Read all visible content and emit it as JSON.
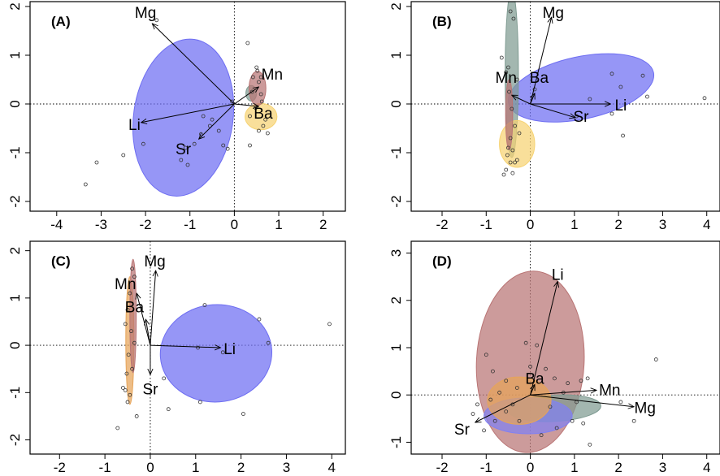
{
  "colors": {
    "blue": "#6e6ef2",
    "red": "#b97474",
    "yellow": "#f6d373",
    "gray": "#7f9b92",
    "orange": "#e6a459",
    "blue_d": "#8181f2"
  },
  "chart_data": [
    {
      "type": "scatter",
      "panel_label": "(A)",
      "xlim": [
        -4.6,
        2.5
      ],
      "ylim": [
        -2.2,
        2.1
      ],
      "xticks": [
        "-4",
        "-3",
        "-2",
        "-1",
        "0",
        "1",
        "2"
      ],
      "yticks": [
        "-2",
        "-1",
        "0",
        "1",
        "2"
      ],
      "xtick_values": [
        -4,
        -3,
        -2,
        -1,
        0,
        1,
        2
      ],
      "ytick_values": [
        -2,
        -1,
        0,
        1,
        2
      ],
      "vectors": [
        {
          "name": "Mg",
          "x": -1.85,
          "y": 1.65,
          "lx": -2.0,
          "ly": 1.85
        },
        {
          "name": "Mn",
          "x": 0.55,
          "y": 0.35,
          "lx": 0.85,
          "ly": 0.58
        },
        {
          "name": "Ba",
          "x": 0.55,
          "y": -0.05,
          "lx": 0.65,
          "ly": -0.22
        },
        {
          "name": "Li",
          "x": -2.1,
          "y": -0.38,
          "lx": -2.25,
          "ly": -0.45
        },
        {
          "name": "Sr",
          "x": -0.8,
          "y": -0.72,
          "lx": -1.15,
          "ly": -0.95
        }
      ],
      "ellipses": [
        {
          "color": "blue",
          "cx": -1.15,
          "cy": -0.28,
          "rx": 1.12,
          "ry": 1.62,
          "rot": 8
        },
        {
          "color": "gray",
          "cx": 0.38,
          "cy": 0.22,
          "rx": 0.12,
          "ry": 0.16,
          "rot": 0
        },
        {
          "color": "yellow",
          "cx": 0.6,
          "cy": -0.26,
          "rx": 0.36,
          "ry": 0.27,
          "rot": 0
        },
        {
          "color": "red",
          "cx": 0.52,
          "cy": 0.32,
          "rx": 0.19,
          "ry": 0.35,
          "rot": 0
        }
      ],
      "points": [
        [
          -3.35,
          -1.65
        ],
        [
          -3.1,
          -1.2
        ],
        [
          -2.5,
          -1.05
        ],
        [
          -2.05,
          -0.82
        ],
        [
          -1.75,
          1.72
        ],
        [
          -1.2,
          -1.15
        ],
        [
          -1.05,
          -1.25
        ],
        [
          -0.9,
          -0.82
        ],
        [
          -0.75,
          -0.62
        ],
        [
          -0.55,
          -0.45
        ],
        [
          -0.5,
          -0.32
        ],
        [
          -0.35,
          -0.55
        ],
        [
          -0.25,
          -0.85
        ],
        [
          -0.15,
          -0.92
        ],
        [
          -0.05,
          0.05
        ],
        [
          -0.7,
          -0.25
        ],
        [
          -1.1,
          -0.9
        ],
        [
          0.3,
          1.25
        ],
        [
          0.5,
          0.75
        ],
        [
          0.42,
          0.55
        ],
        [
          0.55,
          0.45
        ],
        [
          0.6,
          0.2
        ],
        [
          0.62,
          0.05
        ],
        [
          0.48,
          -0.08
        ],
        [
          0.7,
          -0.32
        ],
        [
          0.55,
          -0.55
        ],
        [
          0.75,
          -0.6
        ],
        [
          0.65,
          -0.45
        ],
        [
          0.35,
          -0.85
        ],
        [
          0.4,
          0.25
        ],
        [
          0.52,
          0.68
        ],
        [
          0.35,
          -0.25
        ],
        [
          0.6,
          0.55
        ]
      ]
    },
    {
      "type": "scatter",
      "panel_label": "(B)",
      "xlim": [
        -2.7,
        4.3
      ],
      "ylim": [
        -2.2,
        2.1
      ],
      "xticks": [
        "-2",
        "-1",
        "0",
        "1",
        "2",
        "3",
        "4"
      ],
      "yticks": [
        "-2",
        "-1",
        "0",
        "1",
        "2"
      ],
      "xtick_values": [
        -2,
        -1,
        0,
        1,
        2,
        3,
        4
      ],
      "ytick_values": [
        -2,
        -1,
        0,
        1,
        2
      ],
      "vectors": [
        {
          "name": "Mg",
          "x": 0.48,
          "y": 1.78,
          "lx": 0.52,
          "ly": 1.85
        },
        {
          "name": "Ba",
          "x": 0.1,
          "y": 0.22,
          "lx": 0.2,
          "ly": 0.52
        },
        {
          "name": "Mn",
          "x": -0.42,
          "y": 0.18,
          "lx": -0.55,
          "ly": 0.52
        },
        {
          "name": "Li",
          "x": 1.82,
          "y": 0.0,
          "lx": 2.05,
          "ly": -0.05
        },
        {
          "name": "Sr",
          "x": 1.02,
          "y": -0.28,
          "lx": 1.15,
          "ly": -0.28
        }
      ],
      "ellipses": [
        {
          "color": "blue",
          "cx": 1.15,
          "cy": 0.33,
          "rx": 1.68,
          "ry": 0.64,
          "rot": -12
        },
        {
          "color": "gray",
          "cx": -0.42,
          "cy": 0.62,
          "rx": 0.15,
          "ry": 1.72,
          "rot": 0
        },
        {
          "color": "yellow",
          "cx": -0.3,
          "cy": -0.82,
          "rx": 0.4,
          "ry": 0.48,
          "rot": 0
        },
        {
          "color": "red",
          "cx": -0.48,
          "cy": -0.22,
          "rx": 0.08,
          "ry": 0.72,
          "rot": 0
        }
      ],
      "points": [
        [
          -0.45,
          1.9
        ],
        [
          -0.38,
          1.75
        ],
        [
          -0.5,
          0.75
        ],
        [
          -0.55,
          0.65
        ],
        [
          -0.48,
          0.25
        ],
        [
          -0.42,
          -0.1
        ],
        [
          -0.35,
          -0.45
        ],
        [
          -0.45,
          -0.7
        ],
        [
          -0.5,
          -0.9
        ],
        [
          -0.52,
          -1.05
        ],
        [
          -0.45,
          -1.2
        ],
        [
          -0.35,
          -1.2
        ],
        [
          -0.55,
          -1.35
        ],
        [
          -0.6,
          -1.45
        ],
        [
          -0.4,
          -1.42
        ],
        [
          -0.3,
          -1.15
        ],
        [
          -0.4,
          -0.95
        ],
        [
          -0.25,
          -0.6
        ],
        [
          0.1,
          0.3
        ],
        [
          1.05,
          -0.25
        ],
        [
          1.35,
          0.1
        ],
        [
          1.85,
          0.62
        ],
        [
          2.05,
          0.35
        ],
        [
          2.55,
          0.58
        ],
        [
          2.65,
          0.15
        ],
        [
          2.1,
          -0.65
        ],
        [
          1.85,
          -0.2
        ],
        [
          3.95,
          0.12
        ],
        [
          -0.65,
          0.95
        ],
        [
          -0.3,
          0.5
        ]
      ]
    },
    {
      "type": "scatter",
      "panel_label": "(C)",
      "xlim": [
        -2.65,
        4.3
      ],
      "ylim": [
        -2.3,
        2.2
      ],
      "xticks": [
        "-2",
        "-1",
        "0",
        "1",
        "2",
        "3",
        "4"
      ],
      "yticks": [
        "-2",
        "-1",
        "0",
        "1",
        "2"
      ],
      "xtick_values": [
        -2,
        -1,
        0,
        1,
        2,
        3,
        4
      ],
      "ytick_values": [
        -2,
        -1,
        0,
        1,
        2
      ],
      "vectors": [
        {
          "name": "Mg",
          "x": 0.12,
          "y": 1.58,
          "lx": 0.1,
          "ly": 1.75
        },
        {
          "name": "Mn",
          "x": -0.3,
          "y": 1.1,
          "lx": -0.55,
          "ly": 1.27
        },
        {
          "name": "Ba",
          "x": -0.1,
          "y": 0.55,
          "lx": -0.35,
          "ly": 0.78
        },
        {
          "name": "Li",
          "x": 1.55,
          "y": -0.05,
          "lx": 1.75,
          "ly": -0.1
        },
        {
          "name": "Sr",
          "x": 0.0,
          "y": -0.62,
          "lx": 0.0,
          "ly": -0.95
        }
      ],
      "ellipses": [
        {
          "color": "blue",
          "cx": 1.45,
          "cy": -0.17,
          "rx": 1.23,
          "ry": 1.03,
          "rot": -4
        },
        {
          "color": "orange",
          "cx": -0.45,
          "cy": 0.1,
          "rx": 0.09,
          "ry": 1.35,
          "rot": 0
        },
        {
          "color": "red",
          "cx": -0.38,
          "cy": 0.62,
          "rx": 0.07,
          "ry": 1.2,
          "rot": 0
        }
      ],
      "points": [
        [
          -0.4,
          1.62
        ],
        [
          -0.35,
          1.45
        ],
        [
          -0.45,
          1.1
        ],
        [
          -0.5,
          0.75
        ],
        [
          -0.42,
          0.3
        ],
        [
          -0.48,
          -0.2
        ],
        [
          -0.52,
          -0.6
        ],
        [
          -0.55,
          -0.95
        ],
        [
          -0.5,
          -1.2
        ],
        [
          -0.45,
          -1.05
        ],
        [
          -0.4,
          -0.5
        ],
        [
          -0.35,
          0.05
        ],
        [
          -0.55,
          0.45
        ],
        [
          -0.6,
          -0.9
        ],
        [
          -0.72,
          -1.75
        ],
        [
          0.4,
          -1.35
        ],
        [
          1.05,
          -0.05
        ],
        [
          1.2,
          0.85
        ],
        [
          1.6,
          -0.15
        ],
        [
          2.05,
          -1.45
        ],
        [
          2.4,
          0.55
        ],
        [
          2.6,
          0.05
        ],
        [
          1.1,
          -1.2
        ],
        [
          3.95,
          0.45
        ],
        [
          -0.3,
          -1.5
        ],
        [
          0.3,
          -0.7
        ]
      ]
    },
    {
      "type": "scatter",
      "panel_label": "(D)",
      "xlim": [
        -2.7,
        4.3
      ],
      "ylim": [
        -1.25,
        3.25
      ],
      "xticks": [
        "-2",
        "-1",
        "0",
        "1",
        "2",
        "3",
        "4"
      ],
      "yticks": [
        "-1",
        "0",
        "1",
        "2",
        "3"
      ],
      "xtick_values": [
        -2,
        -1,
        0,
        1,
        2,
        3,
        4
      ],
      "ytick_values": [
        -1,
        0,
        1,
        2,
        3
      ],
      "vectors": [
        {
          "name": "Li",
          "x": 0.62,
          "y": 2.4,
          "lx": 0.62,
          "ly": 2.52
        },
        {
          "name": "Mn",
          "x": 1.5,
          "y": 0.1,
          "lx": 1.8,
          "ly": 0.08
        },
        {
          "name": "Mg",
          "x": 2.35,
          "y": -0.25,
          "lx": 2.6,
          "ly": -0.3
        },
        {
          "name": "Ba",
          "x": 0.1,
          "y": 0.22,
          "lx": 0.1,
          "ly": 0.32
        },
        {
          "name": "Sr",
          "x": -1.25,
          "y": -0.58,
          "lx": -1.55,
          "ly": -0.75
        }
      ],
      "ellipses": [
        {
          "color": "red",
          "cx": 0.0,
          "cy": 0.7,
          "rx": 1.22,
          "ry": 1.92,
          "rot": 3
        },
        {
          "color": "gray",
          "cx": 0.55,
          "cy": -0.28,
          "rx": 1.05,
          "ry": 0.28,
          "rot": -3
        },
        {
          "color": "blue_d",
          "cx": -0.05,
          "cy": -0.44,
          "rx": 1.0,
          "ry": 0.38,
          "rot": 0
        },
        {
          "color": "orange",
          "cx": -0.25,
          "cy": -0.12,
          "rx": 0.72,
          "ry": 0.5,
          "rot": 0
        }
      ],
      "points": [
        [
          -1.2,
          -0.2
        ],
        [
          -1.0,
          0.85
        ],
        [
          -0.85,
          0.5
        ],
        [
          -0.55,
          0.3
        ],
        [
          -0.3,
          0.15
        ],
        [
          -0.1,
          1.1
        ],
        [
          0.15,
          1.05
        ],
        [
          0.35,
          0.55
        ],
        [
          0.55,
          0.35
        ],
        [
          0.85,
          0.25
        ],
        [
          1.15,
          0.3
        ],
        [
          1.3,
          0.35
        ],
        [
          1.05,
          -0.15
        ],
        [
          1.2,
          -0.6
        ],
        [
          1.35,
          -1.05
        ],
        [
          0.95,
          -0.55
        ],
        [
          0.6,
          -0.7
        ],
        [
          0.25,
          -0.85
        ],
        [
          -0.25,
          -0.55
        ],
        [
          -0.55,
          -0.35
        ],
        [
          -0.8,
          -0.55
        ],
        [
          -1.05,
          -0.75
        ],
        [
          -1.3,
          -0.4
        ],
        [
          -0.9,
          -0.1
        ],
        [
          2.35,
          -0.55
        ],
        [
          2.85,
          0.75
        ],
        [
          2.05,
          -0.15
        ],
        [
          0.0,
          0.6
        ],
        [
          -0.4,
          -0.2
        ],
        [
          0.45,
          -0.25
        ],
        [
          -0.7,
          0.05
        ],
        [
          0.75,
          0.05
        ]
      ]
    }
  ]
}
